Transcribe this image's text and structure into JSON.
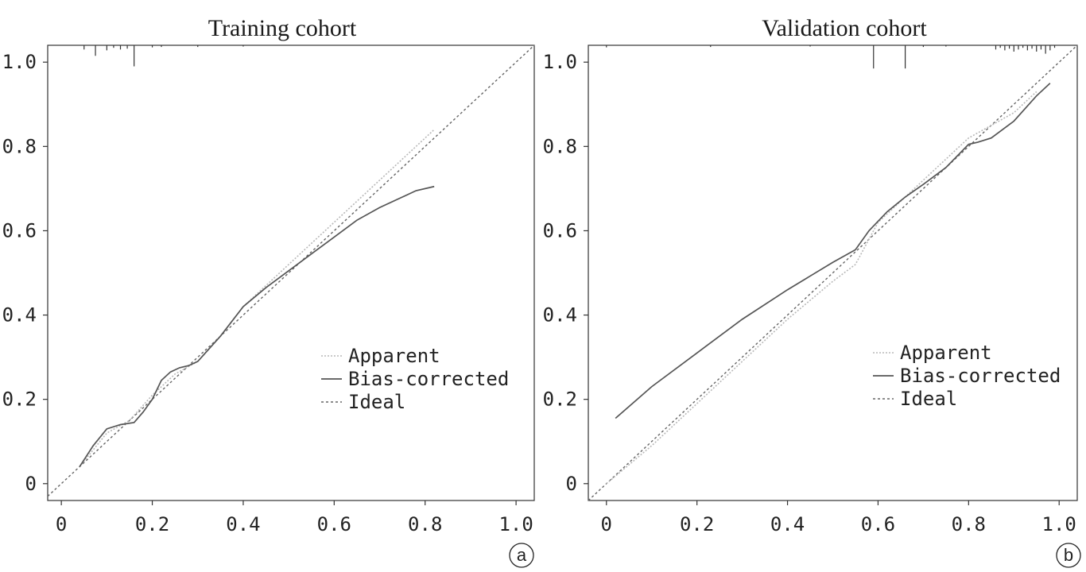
{
  "chart_data": [
    {
      "type": "line",
      "panel": "a",
      "title": "Training cohort",
      "xlabel": "",
      "ylabel": "",
      "xlim": [
        -0.03,
        1.04
      ],
      "ylim": [
        -0.04,
        1.04
      ],
      "x_ticks": [
        0,
        0.2,
        0.4,
        0.6,
        0.8,
        1.0
      ],
      "x_tick_labels": [
        "0",
        "0.2",
        "0.4",
        "0.6",
        "0.8",
        "1.0"
      ],
      "y_ticks": [
        0,
        0.2,
        0.4,
        0.6,
        0.8,
        1.0
      ],
      "y_tick_labels": [
        "0",
        "0.2",
        "0.4",
        "0.6",
        "0.8",
        "1.0"
      ],
      "grid": false,
      "legend_position": "bottom-right",
      "series": [
        {
          "name": "Apparent",
          "style": "dotted-light",
          "x": [
            0.04,
            0.1,
            0.15,
            0.2,
            0.25,
            0.3,
            0.35,
            0.4,
            0.45,
            0.5,
            0.55,
            0.6,
            0.65,
            0.7,
            0.75,
            0.8,
            0.82
          ],
          "y": [
            0.04,
            0.12,
            0.15,
            0.21,
            0.26,
            0.29,
            0.35,
            0.42,
            0.47,
            0.52,
            0.57,
            0.62,
            0.67,
            0.72,
            0.77,
            0.82,
            0.84
          ]
        },
        {
          "name": "Bias-corrected",
          "style": "solid",
          "x": [
            0.04,
            0.07,
            0.1,
            0.13,
            0.16,
            0.18,
            0.2,
            0.22,
            0.24,
            0.26,
            0.28,
            0.3,
            0.35,
            0.4,
            0.45,
            0.5,
            0.55,
            0.6,
            0.65,
            0.7,
            0.75,
            0.78,
            0.82
          ],
          "y": [
            0.04,
            0.09,
            0.13,
            0.14,
            0.145,
            0.17,
            0.2,
            0.245,
            0.265,
            0.275,
            0.28,
            0.29,
            0.35,
            0.42,
            0.465,
            0.505,
            0.545,
            0.585,
            0.625,
            0.655,
            0.68,
            0.695,
            0.705
          ]
        },
        {
          "name": "Ideal",
          "style": "dashed",
          "x": [
            -0.03,
            1.04
          ],
          "y": [
            -0.03,
            1.04
          ]
        }
      ],
      "rug": [
        {
          "x": 0.05,
          "len": 0.01
        },
        {
          "x": 0.075,
          "len": 0.025
        },
        {
          "x": 0.1,
          "len": 0.012
        },
        {
          "x": 0.115,
          "len": 0.006
        },
        {
          "x": 0.13,
          "len": 0.01
        },
        {
          "x": 0.145,
          "len": 0.008
        },
        {
          "x": 0.16,
          "len": 0.05
        },
        {
          "x": 0.2,
          "len": 0.005
        },
        {
          "x": 0.22,
          "len": 0.004
        },
        {
          "x": 0.3,
          "len": 0.004
        },
        {
          "x": 0.4,
          "len": 0.003
        }
      ],
      "panel_label": "a"
    },
    {
      "type": "line",
      "panel": "b",
      "title": "Validation cohort",
      "xlabel": "",
      "ylabel": "",
      "xlim": [
        -0.04,
        1.04
      ],
      "ylim": [
        -0.04,
        1.04
      ],
      "x_ticks": [
        0,
        0.2,
        0.4,
        0.6,
        0.8,
        1.0
      ],
      "x_tick_labels": [
        "0",
        "0.2",
        "0.4",
        "0.6",
        "0.8",
        "1.0"
      ],
      "y_ticks": [
        0,
        0.2,
        0.4,
        0.6,
        0.8,
        1.0
      ],
      "y_tick_labels": [
        "0",
        "0.2",
        "0.4",
        "0.6",
        "0.8",
        "1.0"
      ],
      "grid": false,
      "legend_position": "bottom-right",
      "series": [
        {
          "name": "Apparent",
          "style": "dotted-light",
          "x": [
            0,
            0.1,
            0.2,
            0.3,
            0.4,
            0.5,
            0.55,
            0.6,
            0.7,
            0.8,
            0.85,
            0.9,
            0.95
          ],
          "y": [
            0,
            0.09,
            0.19,
            0.29,
            0.39,
            0.48,
            0.52,
            0.62,
            0.72,
            0.82,
            0.85,
            0.88,
            0.93
          ]
        },
        {
          "name": "Bias-corrected",
          "style": "solid",
          "x": [
            0.02,
            0.1,
            0.2,
            0.3,
            0.4,
            0.5,
            0.55,
            0.58,
            0.62,
            0.66,
            0.7,
            0.75,
            0.8,
            0.82,
            0.85,
            0.9,
            0.95,
            0.98
          ],
          "y": [
            0.155,
            0.23,
            0.31,
            0.39,
            0.46,
            0.525,
            0.555,
            0.6,
            0.645,
            0.68,
            0.71,
            0.75,
            0.805,
            0.81,
            0.82,
            0.86,
            0.92,
            0.95
          ]
        },
        {
          "name": "Ideal",
          "style": "dashed",
          "x": [
            -0.04,
            1.04
          ],
          "y": [
            -0.04,
            1.04
          ]
        }
      ],
      "rug": [
        {
          "x": 0.0,
          "len": 0.005
        },
        {
          "x": 0.23,
          "len": 0.004
        },
        {
          "x": 0.45,
          "len": 0.003
        },
        {
          "x": 0.59,
          "len": 0.055
        },
        {
          "x": 0.66,
          "len": 0.055
        },
        {
          "x": 0.7,
          "len": 0.004
        },
        {
          "x": 0.75,
          "len": 0.003
        },
        {
          "x": 0.86,
          "len": 0.01
        },
        {
          "x": 0.87,
          "len": 0.006
        },
        {
          "x": 0.88,
          "len": 0.012
        },
        {
          "x": 0.89,
          "len": 0.008
        },
        {
          "x": 0.9,
          "len": 0.015
        },
        {
          "x": 0.91,
          "len": 0.01
        },
        {
          "x": 0.92,
          "len": 0.006
        },
        {
          "x": 0.93,
          "len": 0.012
        },
        {
          "x": 0.94,
          "len": 0.008
        },
        {
          "x": 0.95,
          "len": 0.015
        },
        {
          "x": 0.96,
          "len": 0.01
        },
        {
          "x": 0.97,
          "len": 0.02
        },
        {
          "x": 0.98,
          "len": 0.012
        },
        {
          "x": 0.99,
          "len": 0.006
        }
      ],
      "panel_label": "b"
    }
  ]
}
